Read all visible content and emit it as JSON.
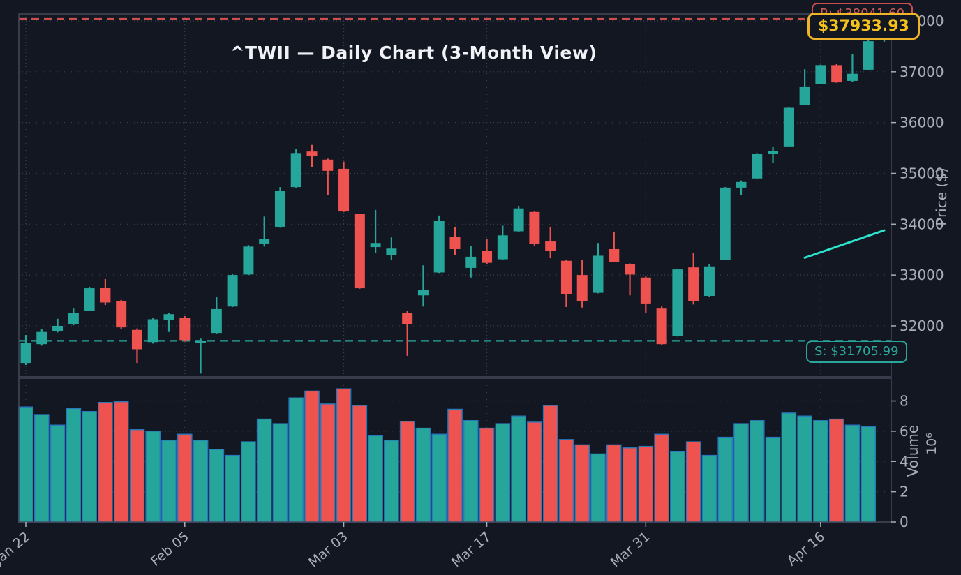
{
  "title": "^TWII — Daily Chart (3-Month View)",
  "annotations": {
    "resistance_label": "R: $38041.60",
    "support_label": "S: $31705.99",
    "current_price_label": "$37933.93"
  },
  "levels": {
    "resistance": 38041.6,
    "support": 31705.99,
    "current_price": 37933.93
  },
  "price_axis": {
    "label": "Price ($)",
    "ticks": [
      32000,
      33000,
      34000,
      35000,
      36000,
      37000,
      38000
    ],
    "min": 30997,
    "max": 38137
  },
  "volume_axis": {
    "label": "Volume",
    "exponent_label": "10⁶",
    "ticks": [
      0,
      2,
      4,
      6,
      8
    ],
    "max": 9.5
  },
  "x_axis": {
    "tick_labels": [
      "Jan 22",
      "Feb 05",
      "Mar 03",
      "Mar 17",
      "Mar 31",
      "Apr 16"
    ],
    "tick_indices": [
      0,
      10,
      20,
      29,
      39,
      50
    ]
  },
  "trend_line": {
    "start_index": 49,
    "start_price": 33340,
    "end_index": 54,
    "end_price": 33880
  },
  "colors": {
    "background": "#131722",
    "up": "#26a69a",
    "down": "#ef5350",
    "volume_edge": "#2878bd",
    "resistance": "#cf4f4f",
    "support": "#2aa79c",
    "trend": "#2de3cd",
    "badge": "#f0b429",
    "axis_text": "#a9adba",
    "grid": "#3a3f4e",
    "spine": "#474c5c",
    "title_text": "#f0f2f5"
  },
  "chart_data": {
    "type": "candlestick+volume",
    "symbol": "^TWII",
    "volume_unit_label": "10⁶",
    "ohlcv_fields": [
      "open",
      "high",
      "low",
      "close",
      "volume_millions"
    ],
    "candles": [
      [
        31270,
        31820,
        31230,
        31670,
        7.6
      ],
      [
        31640,
        31940,
        31610,
        31880,
        7.1
      ],
      [
        31900,
        32140,
        31870,
        32000,
        6.4
      ],
      [
        32030,
        32340,
        32010,
        32260,
        7.5
      ],
      [
        32300,
        32770,
        32290,
        32740,
        7.3
      ],
      [
        32750,
        32920,
        32410,
        32460,
        7.9
      ],
      [
        32480,
        32510,
        31930,
        31970,
        7.95
      ],
      [
        31920,
        31950,
        31270,
        31540,
        6.1
      ],
      [
        31680,
        32160,
        31650,
        32130,
        6.0
      ],
      [
        32120,
        32260,
        31880,
        32230,
        5.4
      ],
      [
        32160,
        32190,
        31690,
        31720,
        5.8
      ],
      [
        31670,
        31750,
        31060,
        31710,
        5.4
      ],
      [
        31860,
        32570,
        31850,
        32330,
        4.8
      ],
      [
        32380,
        33030,
        32370,
        33000,
        4.4
      ],
      [
        33010,
        33590,
        33000,
        33560,
        5.3
      ],
      [
        33620,
        34150,
        33560,
        33710,
        6.8
      ],
      [
        33950,
        34730,
        33930,
        34660,
        6.5
      ],
      [
        34730,
        35480,
        34720,
        35400,
        8.2
      ],
      [
        35430,
        35560,
        35120,
        35350,
        8.65
      ],
      [
        35270,
        35290,
        34570,
        35050,
        7.8
      ],
      [
        35090,
        35230,
        34240,
        34250,
        8.8
      ],
      [
        34200,
        34210,
        32730,
        32740,
        7.7
      ],
      [
        33550,
        34280,
        33430,
        33630,
        5.7
      ],
      [
        33400,
        33740,
        33290,
        33520,
        5.4
      ],
      [
        32260,
        32300,
        31410,
        32030,
        6.65
      ],
      [
        32600,
        33190,
        32380,
        32710,
        6.2
      ],
      [
        33050,
        34170,
        33040,
        34070,
        5.8
      ],
      [
        33750,
        33950,
        33390,
        33510,
        7.45
      ],
      [
        33140,
        33570,
        32950,
        33360,
        6.7
      ],
      [
        33470,
        33710,
        33220,
        33240,
        6.2
      ],
      [
        33310,
        33970,
        33300,
        33780,
        6.5
      ],
      [
        33860,
        34360,
        33850,
        34310,
        7.0
      ],
      [
        34240,
        34260,
        33580,
        33610,
        6.6
      ],
      [
        33660,
        33950,
        33330,
        33480,
        7.7
      ],
      [
        33280,
        33300,
        32370,
        32620,
        5.45
      ],
      [
        33000,
        33300,
        32360,
        32490,
        5.1
      ],
      [
        32650,
        33630,
        32640,
        33380,
        4.5
      ],
      [
        33510,
        33840,
        33250,
        33260,
        5.1
      ],
      [
        33210,
        33230,
        32600,
        33010,
        4.9
      ],
      [
        32950,
        32970,
        32250,
        32440,
        5.0
      ],
      [
        32340,
        32380,
        31630,
        31640,
        5.8
      ],
      [
        31800,
        33120,
        31790,
        33110,
        4.65
      ],
      [
        33150,
        33430,
        32420,
        32480,
        5.3
      ],
      [
        32590,
        33210,
        32570,
        33170,
        4.4
      ],
      [
        33300,
        34730,
        33290,
        34720,
        5.6
      ],
      [
        34720,
        34860,
        34580,
        34830,
        6.5
      ],
      [
        34900,
        35400,
        34890,
        35390,
        6.7
      ],
      [
        35380,
        35530,
        35210,
        35440,
        5.6
      ],
      [
        35530,
        36300,
        35520,
        36290,
        7.2
      ],
      [
        36350,
        37050,
        36340,
        36710,
        7.0
      ],
      [
        36760,
        37140,
        36750,
        37130,
        6.7
      ],
      [
        37130,
        37150,
        36780,
        36790,
        6.8
      ],
      [
        36820,
        37340,
        36800,
        36960,
        6.4
      ],
      [
        37040,
        37710,
        37030,
        37600,
        6.3
      ],
      [
        37620,
        37960,
        37590,
        37933.93,
        0
      ]
    ]
  }
}
